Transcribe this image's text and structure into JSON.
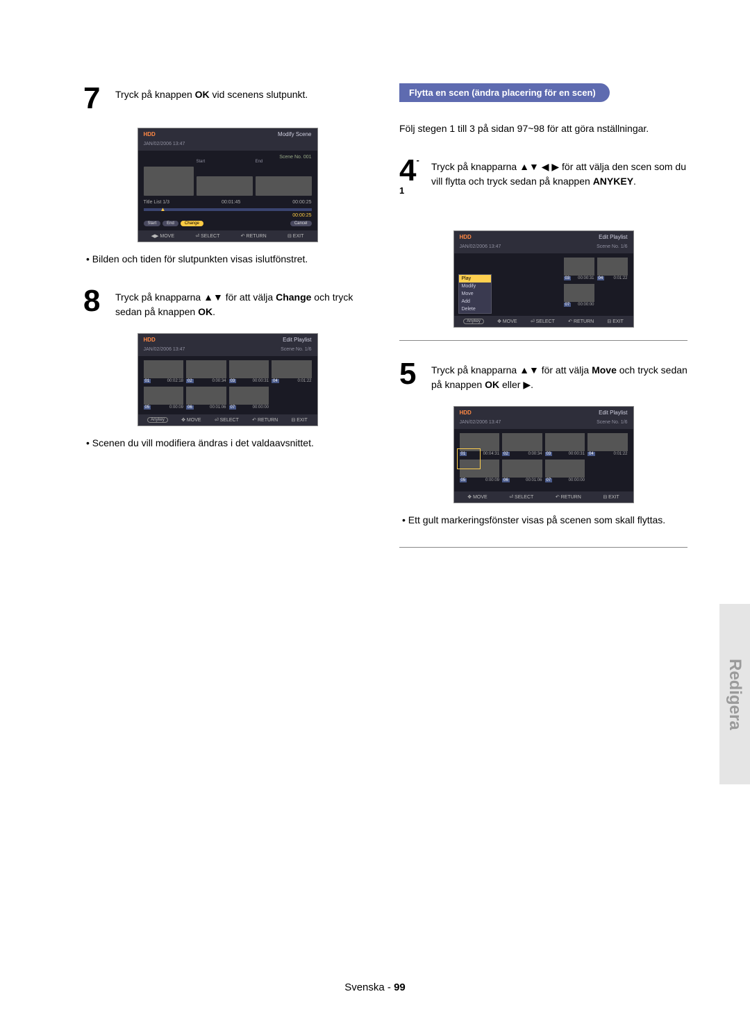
{
  "left": {
    "step7": {
      "num": "7",
      "text_pre": "Tryck på knappen ",
      "ok": "OK",
      "text_post": " vid scenens slutpunkt."
    },
    "ss7": {
      "hdd": "HDD",
      "mode": "Modify Scene",
      "date": "JAN/02/2006 13:47",
      "scene": "Scene No. 001",
      "start_lbl": "Start",
      "end_lbl": "End",
      "title_list": "Title List  1/3",
      "t1": "00:01:45",
      "t2": "00:00:25",
      "btn_start": "Start",
      "btn_end": "End",
      "btn_change": "Change",
      "btn_cancel": "Cancel",
      "foot_move": "MOVE",
      "foot_select": "SELECT",
      "foot_return": "RETURN",
      "foot_exit": "EXIT"
    },
    "bullet7": "Bilden och tiden för slutpunkten visas islutfönstret.",
    "step8": {
      "num": "8",
      "pre": "Tryck på knapparna ▲▼ för att välja ",
      "change": "Change",
      "mid": " och tryck sedan på knappen ",
      "ok": "OK",
      "post": "."
    },
    "ss8": {
      "hdd": "HDD",
      "mode": "Edit Playlist",
      "date": "JAN/02/2006 13:47",
      "scene": "Scene No. 1/6",
      "cells": [
        {
          "n": "01",
          "t": "00:02:18"
        },
        {
          "n": "02",
          "t": "0:00:34"
        },
        {
          "n": "03",
          "t": "00:00:31"
        },
        {
          "n": "04",
          "t": "0:01:22"
        },
        {
          "n": "05",
          "t": "0:00:09"
        },
        {
          "n": "06",
          "t": "00:01:06"
        },
        {
          "n": "07",
          "t": "00:00:00"
        }
      ],
      "anykey": "Anykey",
      "foot_move": "MOVE",
      "foot_select": "SELECT",
      "foot_return": "RETURN",
      "foot_exit": "EXIT"
    },
    "bullet8": "Scenen du vill modifiera ändras i det valdaavsnittet."
  },
  "right": {
    "pill": "Flytta en scen (ändra placering för en scen)",
    "intro": "Följ stegen 1 till 3 på sidan 97~98 för att göra nställningar.",
    "step4": {
      "num": "4",
      "sup": "-1",
      "pre": "Tryck på knapparna ▲▼ ◀ ▶ för att välja den scen som du vill flytta och tryck sedan på knappen ",
      "anykey": "ANYKEY",
      "post": "."
    },
    "ss4": {
      "hdd": "HDD",
      "mode": "Edit Playlist",
      "date": "JAN/02/2006 13:47",
      "scene": "Scene No. 1/6",
      "menu": [
        "Play",
        "Modify",
        "Move",
        "Add",
        "Delete"
      ],
      "cells": [
        {
          "n": "03",
          "t": "00:00:31"
        },
        {
          "n": "04",
          "t": "0:01:22"
        },
        {
          "n": "07",
          "t": "00:00:00"
        }
      ],
      "anykey": "Anykey",
      "foot_move": "MOVE",
      "foot_select": "SELECT",
      "foot_return": "RETURN",
      "foot_exit": "EXIT"
    },
    "step5": {
      "num": "5",
      "pre": "Tryck på knapparna ▲▼ för att välja ",
      "move": "Move",
      "mid": " och tryck sedan på knappen ",
      "ok": "OK",
      "post": " eller ▶."
    },
    "ss5": {
      "hdd": "HDD",
      "mode": "Edit Playlist",
      "date": "JAN/02/2006 13:47",
      "scene": "Scene No. 1/6",
      "cells": [
        {
          "n": "01",
          "t": "00:04:31"
        },
        {
          "n": "02",
          "t": "0:00:34"
        },
        {
          "n": "03",
          "t": "00:00:31"
        },
        {
          "n": "04",
          "t": "0:01:22"
        },
        {
          "n": "05",
          "t": "0:00:09"
        },
        {
          "n": "06",
          "t": "00:01:06"
        },
        {
          "n": "07",
          "t": "00:00:00"
        }
      ],
      "foot_move": "MOVE",
      "foot_select": "SELECT",
      "foot_return": "RETURN",
      "foot_exit": "EXIT"
    },
    "bullet5": "Ett gult markeringsfönster visas på scenen som skall flyttas."
  },
  "sidetab": "Redigera",
  "footer_lang": "Svenska",
  "footer_page": "99"
}
